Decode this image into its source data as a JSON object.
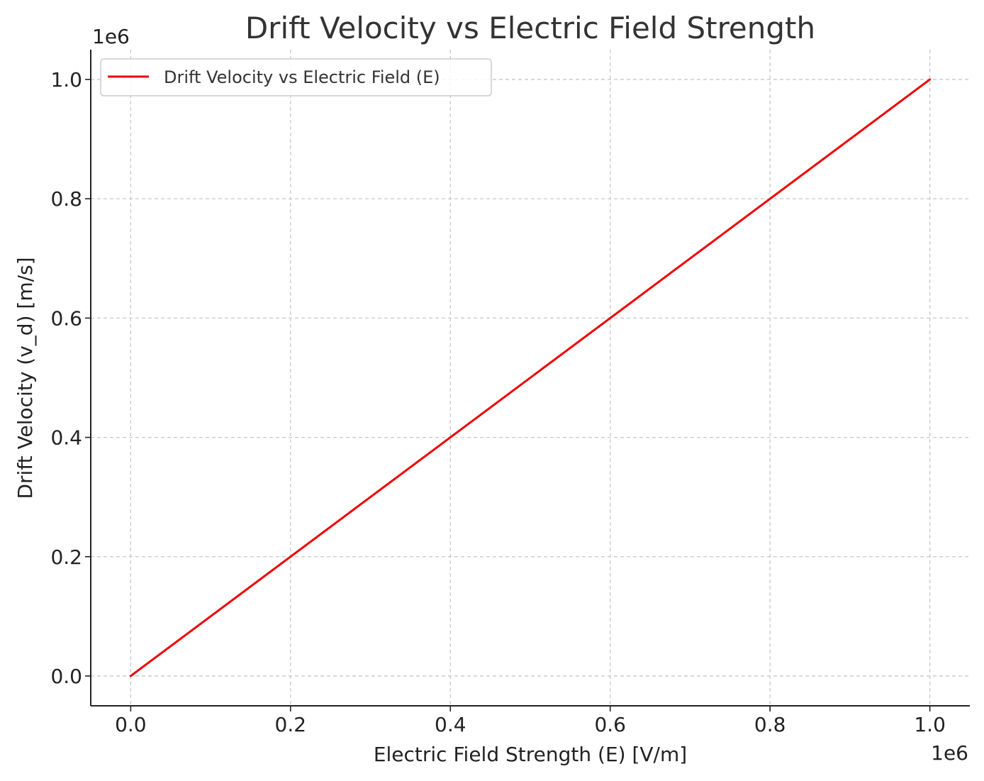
{
  "chart_data": {
    "type": "line",
    "title": "Drift Velocity vs Electric Field Strength",
    "xlabel": "Electric Field Strength (E) [V/m]",
    "ylabel": "Drift Velocity (v_d) [m/s]",
    "x_offset_label": "1e6",
    "y_offset_label": "1e6",
    "xlim": [
      -50000,
      1050000
    ],
    "ylim": [
      -50000,
      1050000
    ],
    "x_ticks": [
      0,
      200000,
      400000,
      600000,
      800000,
      1000000
    ],
    "x_tick_labels": [
      "0.0",
      "0.2",
      "0.4",
      "0.6",
      "0.8",
      "1.0"
    ],
    "y_ticks": [
      0,
      200000,
      400000,
      600000,
      800000,
      1000000
    ],
    "y_tick_labels": [
      "0.0",
      "0.2",
      "0.4",
      "0.6",
      "0.8",
      "1.0"
    ],
    "grid": true,
    "legend_position": "upper-left",
    "series": [
      {
        "name": "Drift Velocity vs Electric Field (E)",
        "color": "#ee0000",
        "x": [
          0,
          1000000
        ],
        "y": [
          0,
          1000000
        ]
      }
    ]
  }
}
